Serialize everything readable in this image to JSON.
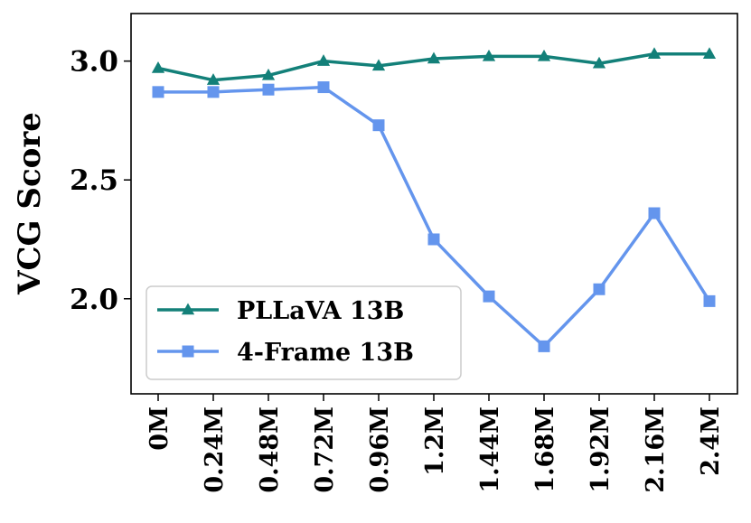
{
  "chart_data": {
    "type": "line",
    "ylabel": "VCG Score",
    "xlabel": "",
    "categories": [
      "0M",
      "0.24M",
      "0.48M",
      "0.72M",
      "0.96M",
      "1.2M",
      "1.44M",
      "1.68M",
      "1.92M",
      "2.16M",
      "2.4M"
    ],
    "ylim": [
      1.6,
      3.2
    ],
    "yticks": [
      "2.0",
      "2.5",
      "3.0"
    ],
    "grid": false,
    "legend_position": "lower-left",
    "series": [
      {
        "name": "PLLaVA 13B",
        "marker": "triangle",
        "color": "#138079",
        "values": [
          2.97,
          2.92,
          2.94,
          3.0,
          2.98,
          3.01,
          3.02,
          3.02,
          2.99,
          3.03,
          3.03
        ]
      },
      {
        "name": "4-Frame 13B",
        "marker": "square",
        "color": "#6495ED",
        "values": [
          2.87,
          2.87,
          2.88,
          2.89,
          2.73,
          2.25,
          2.01,
          1.8,
          2.04,
          2.36,
          1.99
        ]
      }
    ]
  }
}
